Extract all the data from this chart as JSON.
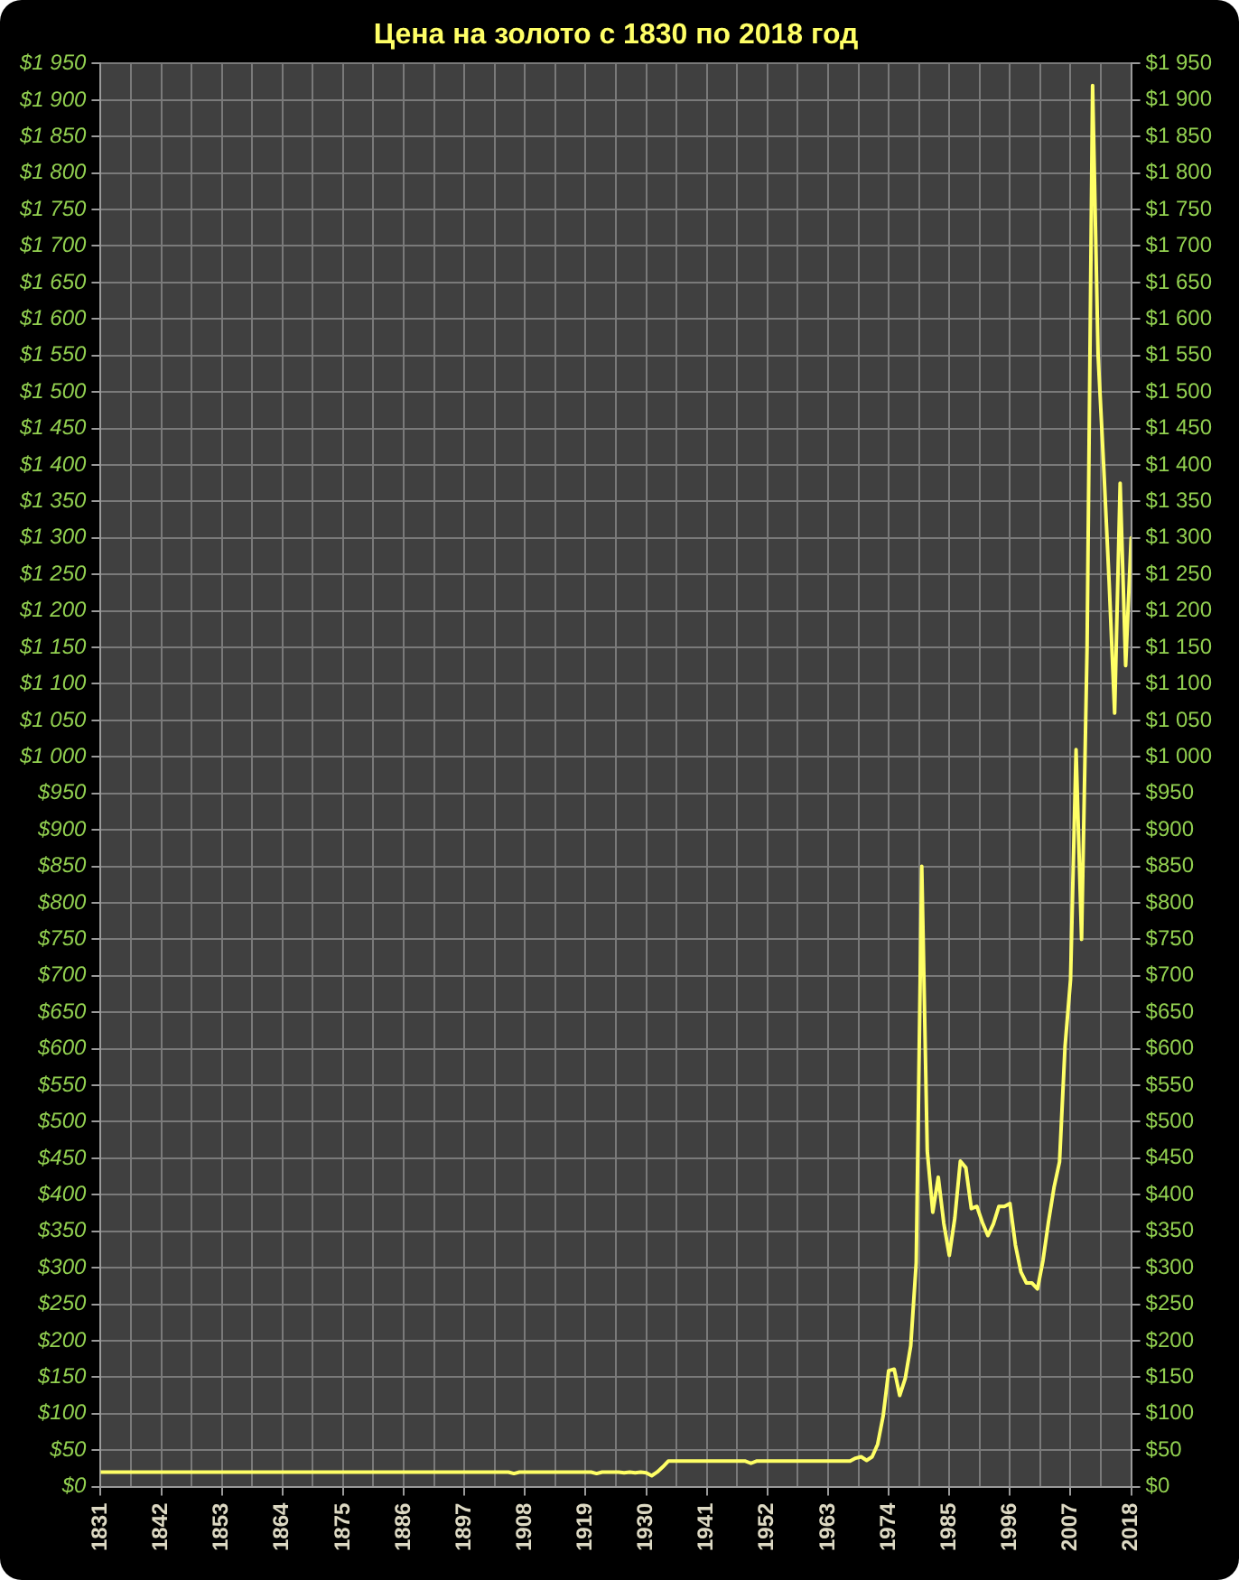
{
  "chart_data": {
    "type": "line",
    "title": "Цена на золото с 1830 по 2018 год",
    "x": [
      1831,
      1905,
      1906,
      1907,
      1920,
      1921,
      1922,
      1925,
      1926,
      1927,
      1928,
      1929,
      1930,
      1931,
      1932,
      1933,
      1934,
      1948,
      1949,
      1950,
      1967,
      1968,
      1969,
      1970,
      1971,
      1972,
      1973,
      1974,
      1975,
      1976,
      1977,
      1978,
      1979,
      1980,
      1981,
      1982,
      1983,
      1984,
      1985,
      1986,
      1987,
      1988,
      1989,
      1990,
      1991,
      1992,
      1993,
      1994,
      1995,
      1996,
      1997,
      1998,
      1999,
      2000,
      2001,
      2002,
      2003,
      2004,
      2005,
      2006,
      2007,
      2008,
      2009,
      2010,
      2011,
      2012,
      2013,
      2014,
      2015,
      2016,
      2017,
      2018
    ],
    "values": [
      20,
      20,
      18,
      20,
      20,
      18,
      20,
      20,
      19,
      20,
      19,
      20,
      19,
      15,
      20,
      27,
      35,
      35,
      32,
      35,
      35,
      39,
      41,
      36,
      41,
      58,
      97,
      159,
      161,
      125,
      148,
      193,
      307,
      850,
      460,
      376,
      424,
      361,
      317,
      368,
      446,
      437,
      381,
      384,
      362,
      344,
      360,
      384,
      384,
      388,
      331,
      294,
      279,
      279,
      271,
      310,
      363,
      410,
      445,
      603,
      695,
      1010,
      750,
      1150,
      1920,
      1550,
      1400,
      1240,
      1060,
      1375,
      1125,
      1300
    ],
    "color": "#ffff66",
    "marker": "none",
    "line_style": "solid",
    "grid": true,
    "xlim": [
      1831,
      2018
    ],
    "xticks": [
      1831,
      {
        "value": 1836.5,
        "label": null
      },
      1842,
      {
        "value": 1847.5,
        "label": null
      },
      1853,
      {
        "value": 1858.5,
        "label": null
      },
      1864,
      {
        "value": 1869.5,
        "label": null
      },
      1875,
      {
        "value": 1880.5,
        "label": null
      },
      1886,
      {
        "value": 1891.5,
        "label": null
      },
      1897,
      {
        "value": 1902.5,
        "label": null
      },
      1908,
      {
        "value": 1913.5,
        "label": null
      },
      1919,
      {
        "value": 1924.5,
        "label": null
      },
      1930,
      {
        "value": 1935.5,
        "label": null
      },
      1941,
      {
        "value": 1946.5,
        "label": null
      },
      1952,
      {
        "value": 1957.5,
        "label": null
      },
      1963,
      {
        "value": 1968.5,
        "label": null
      },
      1974,
      {
        "value": 1979.5,
        "label": null
      },
      1985,
      {
        "value": 1990.5,
        "label": null
      },
      1996,
      {
        "value": 2001.5,
        "label": null
      },
      2007,
      {
        "value": 2012.5,
        "label": null
      },
      2018
    ],
    "ylim": [
      0,
      1950
    ],
    "yticks": [
      {
        "value": 0,
        "label": "$0"
      },
      {
        "value": 50,
        "label": "$50"
      },
      {
        "value": 100,
        "label": "$100"
      },
      {
        "value": 150,
        "label": "$150"
      },
      {
        "value": 200,
        "label": "$200"
      },
      {
        "value": 250,
        "label": "$250"
      },
      {
        "value": 300,
        "label": "$300"
      },
      {
        "value": 350,
        "label": "$350"
      },
      {
        "value": 400,
        "label": "$400"
      },
      {
        "value": 450,
        "label": "$450"
      },
      {
        "value": 500,
        "label": "$500"
      },
      {
        "value": 550,
        "label": "$550"
      },
      {
        "value": 600,
        "label": "$600"
      },
      {
        "value": 650,
        "label": "$650"
      },
      {
        "value": 700,
        "label": "$700"
      },
      {
        "value": 750,
        "label": "$750"
      },
      {
        "value": 800,
        "label": "$800"
      },
      {
        "value": 850,
        "label": "$850"
      },
      {
        "value": 900,
        "label": "$900"
      },
      {
        "value": 950,
        "label": "$950"
      },
      {
        "value": 1000,
        "label": "$1 000"
      },
      {
        "value": 1050,
        "label": "$1 050"
      },
      {
        "value": 1100,
        "label": "$1 100"
      },
      {
        "value": 1150,
        "label": "$1 150"
      },
      {
        "value": 1200,
        "label": "$1 200"
      },
      {
        "value": 1250,
        "label": "$1 250"
      },
      {
        "value": 1300,
        "label": "$1 300"
      },
      {
        "value": 1350,
        "label": "$1 350"
      },
      {
        "value": 1400,
        "label": "$1 400"
      },
      {
        "value": 1450,
        "label": "$1 450"
      },
      {
        "value": 1500,
        "label": "$1 500"
      },
      {
        "value": 1550,
        "label": "$1 550"
      },
      {
        "value": 1600,
        "label": "$1 600"
      },
      {
        "value": 1650,
        "label": "$1 650"
      },
      {
        "value": 1700,
        "label": "$1 700"
      },
      {
        "value": 1750,
        "label": "$1 750"
      },
      {
        "value": 1800,
        "label": "$1 800"
      },
      {
        "value": 1850,
        "label": "$1 850"
      },
      {
        "value": 1900,
        "label": "$1 900"
      },
      {
        "value": 1950,
        "label": "$1 950"
      }
    ],
    "y2lim": [
      0,
      1950
    ],
    "y2ticks": [
      {
        "value": 0,
        "label": "$0"
      },
      {
        "value": 50,
        "label": "$50"
      },
      {
        "value": 100,
        "label": "$100"
      },
      {
        "value": 150,
        "label": "$150"
      },
      {
        "value": 200,
        "label": "$200"
      },
      {
        "value": 250,
        "label": "$250"
      },
      {
        "value": 300,
        "label": "$300"
      },
      {
        "value": 350,
        "label": "$350"
      },
      {
        "value": 400,
        "label": "$400"
      },
      {
        "value": 450,
        "label": "$450"
      },
      {
        "value": 500,
        "label": "$500"
      },
      {
        "value": 550,
        "label": "$550"
      },
      {
        "value": 600,
        "label": "$600"
      },
      {
        "value": 650,
        "label": "$650"
      },
      {
        "value": 700,
        "label": "$700"
      },
      {
        "value": 750,
        "label": "$750"
      },
      {
        "value": 800,
        "label": "$800"
      },
      {
        "value": 850,
        "label": "$850"
      },
      {
        "value": 900,
        "label": "$900"
      },
      {
        "value": 950,
        "label": "$950"
      },
      {
        "value": 1000,
        "label": "$1 000"
      },
      {
        "value": 1050,
        "label": "$1 050"
      },
      {
        "value": 1100,
        "label": "$1 100"
      },
      {
        "value": 1150,
        "label": "$1 150"
      },
      {
        "value": 1200,
        "label": "$1 200"
      },
      {
        "value": 1250,
        "label": "$1 250"
      },
      {
        "value": 1300,
        "label": "$1 300"
      },
      {
        "value": 1350,
        "label": "$1 350"
      },
      {
        "value": 1400,
        "label": "$1 400"
      },
      {
        "value": 1450,
        "label": "$1 450"
      },
      {
        "value": 1500,
        "label": "$1 500"
      },
      {
        "value": 1550,
        "label": "$1 550"
      },
      {
        "value": 1600,
        "label": "$1 600"
      },
      {
        "value": 1650,
        "label": "$1 650"
      },
      {
        "value": 1700,
        "label": "$1 700"
      },
      {
        "value": 1750,
        "label": "$1 750"
      },
      {
        "value": 1800,
        "label": "$1 800"
      },
      {
        "value": 1850,
        "label": "$1 850"
      },
      {
        "value": 1900,
        "label": "$1 900"
      },
      {
        "value": 1950,
        "label": "$1 950"
      }
    ]
  }
}
